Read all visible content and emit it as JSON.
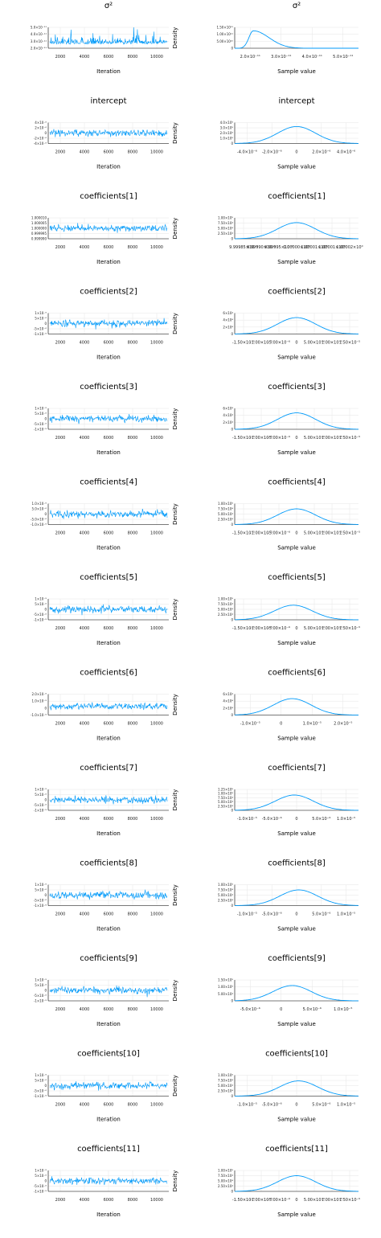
{
  "chart_data": [
    {
      "type": "line",
      "parameter": "σ²",
      "panel": "trace",
      "title": "σ²",
      "xlabel": "Iteration",
      "ylabel": "",
      "xticks": [
        "2000",
        "4000",
        "6000",
        "8000",
        "10000"
      ],
      "xlim": [
        1000,
        11000
      ],
      "yticks": [
        "5.0×10⁻¹¹",
        "4.0×10⁻¹¹",
        "3.0×10⁻¹¹",
        "2.0×10⁻¹¹"
      ],
      "ylim": [
        1.6e-11,
        5.6e-11
      ],
      "center": 2.4e-11,
      "sd": 6e-12,
      "skew": true
    },
    {
      "type": "line",
      "parameter": "σ²",
      "panel": "density",
      "title": "σ²",
      "xlabel": "Sample value",
      "ylabel": "Density",
      "xticks": [
        "2.0×10⁻¹¹",
        "3.0×10⁻¹¹",
        "4.0×10⁻¹¹",
        "5.0×10⁻¹¹"
      ],
      "xlim": [
        1.6e-11,
        5.6e-11
      ],
      "yticks": [
        "1.50×10¹¹",
        "1.00×10¹¹",
        "5.00×10¹⁰",
        "0"
      ],
      "ylim": [
        0,
        180000000000.0
      ],
      "mode": 2.2e-11,
      "peak": 150000000000.0,
      "skew": true
    },
    {
      "type": "line",
      "parameter": "intercept",
      "panel": "trace",
      "title": "intercept",
      "xlabel": "Iteration",
      "ylabel": "",
      "xticks": [
        "2000",
        "4000",
        "6000",
        "8000",
        "10000"
      ],
      "xlim": [
        1000,
        11000
      ],
      "yticks": [
        "4×10⁻⁶",
        "2×10⁻⁶",
        "0",
        "-2×10⁻⁶",
        "-4×10⁻⁶"
      ],
      "ylim": [
        -5e-06,
        5e-06
      ],
      "center": 0,
      "sd": 1.5e-06
    },
    {
      "type": "line",
      "parameter": "intercept",
      "panel": "density",
      "title": "intercept",
      "xlabel": "Sample value",
      "ylabel": "Density",
      "xticks": [
        "-4.0×10⁻⁶",
        "-2.0×10⁻⁶",
        "0",
        "2.0×10⁻⁶",
        "4.0×10⁻⁶"
      ],
      "xlim": [
        -5e-06,
        5e-06
      ],
      "yticks": [
        "4.0×10⁵",
        "3.0×10⁵",
        "2.0×10⁵",
        "1.0×10⁵",
        "0"
      ],
      "ylim": [
        0,
        320000.0
      ],
      "mode": 0,
      "peak": 260000.0
    },
    {
      "type": "line",
      "parameter": "coefficients[1]",
      "panel": "trace",
      "title": "coefficients[1]",
      "xlabel": "Iteration",
      "ylabel": "",
      "xticks": [
        "2000",
        "4000",
        "6000",
        "8000",
        "10000"
      ],
      "xlim": [
        1000,
        11000
      ],
      "yticks": [
        "1.000010",
        "1.000005",
        "1.000000",
        "0.999995",
        "0.999990"
      ],
      "ylim": [
        0.999986,
        1.000014
      ],
      "center": 1.0,
      "sd": 4e-06
    },
    {
      "type": "line",
      "parameter": "coefficients[1]",
      "panel": "density",
      "title": "coefficients[1]",
      "xlabel": "Sample value",
      "ylabel": "Density",
      "xticks": [
        "9.99985×10⁻¹",
        "9.99990×10⁻¹",
        "9.99995×10⁻¹",
        "1.00000×10⁰",
        "1.00001×10⁰",
        "1.00001×10⁰",
        "1.00002×10⁰"
      ],
      "xlim": [
        0.999984,
        1.00002
      ],
      "yticks": [
        "1.00×10⁵",
        "7.50×10⁴",
        "5.00×10⁴",
        "2.50×10⁴",
        "0"
      ],
      "ylim": [
        0,
        110000.0
      ],
      "mode": 1.000002,
      "peak": 85000.0
    },
    {
      "type": "line",
      "parameter": "coefficients[2]",
      "panel": "trace",
      "title": "coefficients[2]",
      "xlabel": "Iteration",
      "ylabel": "",
      "xticks": [
        "2000",
        "4000",
        "6000",
        "8000",
        "10000"
      ],
      "xlim": [
        1000,
        11000
      ],
      "yticks": [
        "1×10⁻⁵",
        "5×10⁻⁶",
        "0",
        "-5×10⁻⁶",
        "-1×10⁻⁵"
      ],
      "ylim": [
        -1.9e-05,
        1.9e-05
      ],
      "center": 0,
      "sd": 6e-06
    },
    {
      "type": "line",
      "parameter": "coefficients[2]",
      "panel": "density",
      "title": "coefficients[2]",
      "xlabel": "Sample value",
      "ylabel": "Density",
      "xticks": [
        "-1.50×10⁻⁵",
        "-1.00×10⁻⁵",
        "-5.00×10⁻⁶",
        "0",
        "5.00×10⁻⁶",
        "1.00×10⁻⁵",
        "1.50×10⁻⁵"
      ],
      "xlim": [
        -2.2e-05,
        2.2e-05
      ],
      "yticks": [
        "6×10⁴",
        "4×10⁴",
        "2×10⁴",
        "0"
      ],
      "ylim": [
        0,
        70000.0
      ],
      "mode": 0,
      "peak": 55000.0
    },
    {
      "type": "line",
      "parameter": "coefficients[3]",
      "panel": "trace",
      "title": "coefficients[3]",
      "xlabel": "Iteration",
      "ylabel": "",
      "xticks": [
        "2000",
        "4000",
        "6000",
        "8000",
        "10000"
      ],
      "xlim": [
        1000,
        11000
      ],
      "yticks": [
        "1×10⁻⁵",
        "5×10⁻⁶",
        "0",
        "-5×10⁻⁶",
        "-1×10⁻⁵"
      ],
      "ylim": [
        -1.9e-05,
        1.9e-05
      ],
      "center": 0,
      "sd": 6e-06
    },
    {
      "type": "line",
      "parameter": "coefficients[3]",
      "panel": "density",
      "title": "coefficients[3]",
      "xlabel": "Sample value",
      "ylabel": "Density",
      "xticks": [
        "-1.50×10⁻⁵",
        "-1.00×10⁻⁵",
        "-5.00×10⁻⁶",
        "0",
        "5.00×10⁻⁶",
        "1.00×10⁻⁵",
        "1.50×10⁻⁵"
      ],
      "xlim": [
        -2.2e-05,
        2.2e-05
      ],
      "yticks": [
        "6×10⁴",
        "4×10⁴",
        "2×10⁴",
        "0"
      ],
      "ylim": [
        0,
        70000.0
      ],
      "mode": 0,
      "peak": 55000.0
    },
    {
      "type": "line",
      "parameter": "coefficients[4]",
      "panel": "trace",
      "title": "coefficients[4]",
      "xlabel": "Iteration",
      "ylabel": "",
      "xticks": [
        "2000",
        "4000",
        "6000",
        "8000",
        "10000"
      ],
      "xlim": [
        1000,
        11000
      ],
      "yticks": [
        "1.0×10⁻⁵",
        "5.0×10⁻⁶",
        "0",
        "-5.0×10⁻⁶",
        "-1.0×10⁻⁵"
      ],
      "ylim": [
        -1.6e-05,
        1.6e-05
      ],
      "center": 0,
      "sd": 5e-06
    },
    {
      "type": "line",
      "parameter": "coefficients[4]",
      "panel": "density",
      "title": "coefficients[4]",
      "xlabel": "Sample value",
      "ylabel": "Density",
      "xticks": [
        "-1.50×10⁻⁵",
        "-1.00×10⁻⁵",
        "-5.00×10⁻⁶",
        "0",
        "5.00×10⁻⁶",
        "1.00×10⁻⁵",
        "1.50×10⁻⁵"
      ],
      "xlim": [
        -1.8e-05,
        1.8e-05
      ],
      "yticks": [
        "1.00×10⁵",
        "7.50×10⁴",
        "5.00×10⁴",
        "2.50×10⁴",
        "0"
      ],
      "ylim": [
        0,
        100000.0
      ],
      "mode": 0,
      "peak": 75000.0
    },
    {
      "type": "line",
      "parameter": "coefficients[5]",
      "panel": "trace",
      "title": "coefficients[5]",
      "xlabel": "Iteration",
      "ylabel": "",
      "xticks": [
        "2000",
        "4000",
        "6000",
        "8000",
        "10000"
      ],
      "xlim": [
        1000,
        11000
      ],
      "yticks": [
        "1×10⁻⁵",
        "5×10⁻⁶",
        "0",
        "-5×10⁻⁶",
        "-1×10⁻⁵"
      ],
      "ylim": [
        -1.7e-05,
        1.7e-05
      ],
      "center": 0,
      "sd": 5.5e-06
    },
    {
      "type": "line",
      "parameter": "coefficients[5]",
      "panel": "density",
      "title": "coefficients[5]",
      "xlabel": "Sample value",
      "ylabel": "Density",
      "xticks": [
        "-1.50×10⁻⁵",
        "-1.00×10⁻⁵",
        "-5.00×10⁻⁶",
        "0",
        "5.00×10⁻⁶",
        "1.00×10⁻⁵",
        "1.50×10⁻⁵"
      ],
      "xlim": [
        -1.8e-05,
        2e-05
      ],
      "yticks": [
        "1.00×10⁵",
        "7.50×10⁴",
        "5.00×10⁴",
        "2.50×10⁴",
        "0"
      ],
      "ylim": [
        0,
        100000.0
      ],
      "mode": 0,
      "peak": 70000.0
    },
    {
      "type": "line",
      "parameter": "coefficients[6]",
      "panel": "trace",
      "title": "coefficients[6]",
      "xlabel": "Iteration",
      "ylabel": "",
      "xticks": [
        "2000",
        "4000",
        "6000",
        "8000",
        "10000"
      ],
      "xlim": [
        1000,
        11000
      ],
      "yticks": [
        "2.0×10⁻⁵",
        "1.0×10⁻⁵",
        "0",
        "-1.0×10⁻⁵"
      ],
      "ylim": [
        -1.6e-05,
        2.2e-05
      ],
      "center": 0,
      "sd": 6e-06
    },
    {
      "type": "line",
      "parameter": "coefficients[6]",
      "panel": "density",
      "title": "coefficients[6]",
      "xlabel": "Sample value",
      "ylabel": "Density",
      "xticks": [
        "-1.0×10⁻⁵",
        "0",
        "1.0×10⁻⁵",
        "2.0×10⁻⁵"
      ],
      "xlim": [
        -2e-05,
        2.3e-05
      ],
      "yticks": [
        "6×10⁴",
        "4×10⁴",
        "2×10⁴",
        "0"
      ],
      "ylim": [
        0,
        70000.0
      ],
      "mode": 0,
      "peak": 55000.0
    },
    {
      "type": "line",
      "parameter": "coefficients[7]",
      "panel": "trace",
      "title": "coefficients[7]",
      "xlabel": "Iteration",
      "ylabel": "",
      "xticks": [
        "2000",
        "4000",
        "6000",
        "8000",
        "10000"
      ],
      "xlim": [
        1000,
        11000
      ],
      "yticks": [
        "1×10⁻⁵",
        "5×10⁻⁶",
        "0",
        "-5×10⁻⁶",
        "-1×10⁻⁵"
      ],
      "ylim": [
        -1.4e-05,
        1.4e-05
      ],
      "center": 0,
      "sd": 4.5e-06
    },
    {
      "type": "line",
      "parameter": "coefficients[7]",
      "panel": "density",
      "title": "coefficients[7]",
      "xlabel": "Sample value",
      "ylabel": "Density",
      "xticks": [
        "-1.0×10⁻⁵",
        "-5.0×10⁻⁶",
        "0",
        "5.0×10⁻⁶",
        "1.0×10⁻⁵"
      ],
      "xlim": [
        -1.3e-05,
        1.4e-05
      ],
      "yticks": [
        "1.25×10⁵",
        "1.00×10⁵",
        "7.50×10⁴",
        "5.00×10⁴",
        "2.50×10⁴",
        "0"
      ],
      "ylim": [
        0,
        130000.0
      ],
      "mode": 0,
      "peak": 95000.0
    },
    {
      "type": "line",
      "parameter": "coefficients[8]",
      "panel": "trace",
      "title": "coefficients[8]",
      "xlabel": "Iteration",
      "ylabel": "",
      "xticks": [
        "2000",
        "4000",
        "6000",
        "8000",
        "10000"
      ],
      "xlim": [
        1000,
        11000
      ],
      "yticks": [
        "1×10⁻⁵",
        "5×10⁻⁶",
        "0",
        "-5×10⁻⁶",
        "-1×10⁻⁵"
      ],
      "ylim": [
        -1.3e-05,
        1.3e-05
      ],
      "center": 0,
      "sd": 4e-06
    },
    {
      "type": "line",
      "parameter": "coefficients[8]",
      "panel": "density",
      "title": "coefficients[8]",
      "xlabel": "Sample value",
      "ylabel": "Density",
      "xticks": [
        "-1.0×10⁻⁵",
        "-5.0×10⁻⁶",
        "0",
        "5.0×10⁻⁶",
        "1.0×10⁻⁵"
      ],
      "xlim": [
        -1.5e-05,
        1.4e-05
      ],
      "yticks": [
        "1.00×10⁵",
        "7.50×10⁴",
        "5.00×10⁴",
        "2.50×10⁴",
        "0"
      ],
      "ylim": [
        0,
        120000.0
      ],
      "mode": 0,
      "peak": 90000.0
    },
    {
      "type": "line",
      "parameter": "coefficients[9]",
      "panel": "trace",
      "title": "coefficients[9]",
      "xlabel": "Iteration",
      "ylabel": "",
      "xticks": [
        "2000",
        "4000",
        "6000",
        "8000",
        "10000"
      ],
      "xlim": [
        1000,
        11000
      ],
      "yticks": [
        "1×10⁻⁵",
        "5×10⁻⁶",
        "0",
        "-5×10⁻⁶",
        "-1×10⁻⁵"
      ],
      "ylim": [
        -1.2e-05,
        1.2e-05
      ],
      "center": 0,
      "sd": 3.6e-06
    },
    {
      "type": "line",
      "parameter": "coefficients[9]",
      "panel": "density",
      "title": "coefficients[9]",
      "xlabel": "Sample value",
      "ylabel": "Density",
      "xticks": [
        "-5.0×10⁻⁶",
        "0",
        "5.0×10⁻⁶",
        "1.0×10⁻⁵"
      ],
      "xlim": [
        -1.3e-05,
        1.5e-05
      ],
      "yticks": [
        "1.50×10⁵",
        "1.00×10⁵",
        "5.00×10⁴",
        "0"
      ],
      "ylim": [
        0,
        150000.0
      ],
      "mode": 0,
      "peak": 110000.0
    },
    {
      "type": "line",
      "parameter": "coefficients[10]",
      "panel": "trace",
      "title": "coefficients[10]",
      "xlabel": "Iteration",
      "ylabel": "",
      "xticks": [
        "2000",
        "4000",
        "6000",
        "8000",
        "10000"
      ],
      "xlim": [
        1000,
        11000
      ],
      "yticks": [
        "1×10⁻⁵",
        "5×10⁻⁶",
        "0",
        "-5×10⁻⁶",
        "-1×10⁻⁵"
      ],
      "ylim": [
        -1.6e-05,
        1.6e-05
      ],
      "center": 0,
      "sd": 5e-06
    },
    {
      "type": "line",
      "parameter": "coefficients[10]",
      "panel": "density",
      "title": "coefficients[10]",
      "xlabel": "Sample value",
      "ylabel": "Density",
      "xticks": [
        "-1.0×10⁻⁵",
        "-5.0×10⁻⁶",
        "0",
        "5.0×10⁻⁶",
        "1.0×10⁻⁵"
      ],
      "xlim": [
        -1.6e-05,
        1.5e-05
      ],
      "yticks": [
        "1.00×10⁵",
        "7.50×10⁴",
        "5.00×10⁴",
        "2.50×10⁴",
        "0"
      ],
      "ylim": [
        0,
        110000.0
      ],
      "mode": 0,
      "peak": 80000.0
    },
    {
      "type": "line",
      "parameter": "coefficients[11]",
      "panel": "trace",
      "title": "coefficients[11]",
      "xlabel": "Iteration",
      "ylabel": "",
      "xticks": [
        "2000",
        "4000",
        "6000",
        "8000",
        "10000"
      ],
      "xlim": [
        1000,
        11000
      ],
      "yticks": [
        "1×10⁻⁵",
        "5×10⁻⁶",
        "0",
        "-5×10⁻⁶",
        "-1×10⁻⁵"
      ],
      "ylim": [
        -1.6e-05,
        1.6e-05
      ],
      "center": 0,
      "sd": 5e-06
    },
    {
      "type": "line",
      "parameter": "coefficients[11]",
      "panel": "density",
      "title": "coefficients[11]",
      "xlabel": "Sample value",
      "ylabel": "Density",
      "xticks": [
        "-1.50×10⁻⁵",
        "-1.00×10⁻⁵",
        "-5.00×10⁻⁶",
        "0",
        "5.00×10⁻⁶",
        "1.00×10⁻⁵",
        "1.50×10⁻⁵"
      ],
      "xlim": [
        -1.8e-05,
        1.8e-05
      ],
      "yticks": [
        "1.00×10⁵",
        "7.50×10⁴",
        "5.00×10⁴",
        "2.50×10⁴",
        "0"
      ],
      "ylim": [
        0,
        100000.0
      ],
      "mode": 0,
      "peak": 75000.0
    }
  ],
  "colors": {
    "series": "#009AFA",
    "grid": "#E6E6E6",
    "axis": "#000000",
    "text": "#000000"
  }
}
